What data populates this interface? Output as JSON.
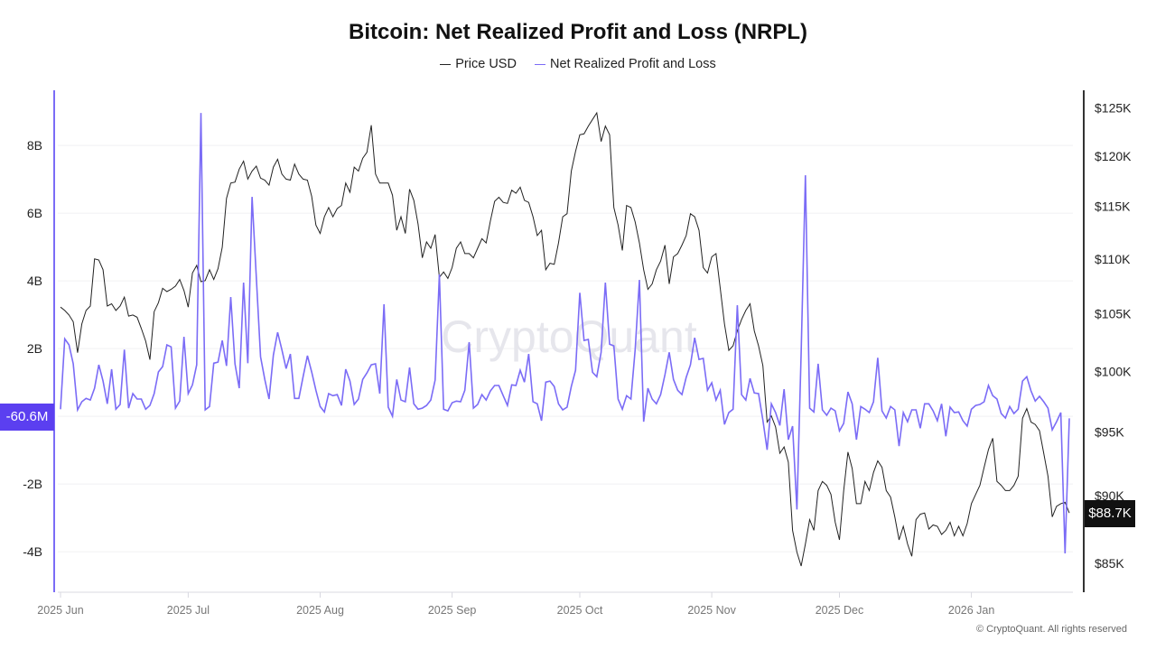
{
  "chart_data": {
    "type": "line",
    "title": "Bitcoin: Net Realized Profit and Loss (NRPL)",
    "legend": {
      "placement": "top-center",
      "entries": [
        "Price USD",
        "Net Realized Profit and Loss"
      ]
    },
    "watermark": "CryptoQuant",
    "copyright": "© CryptoQuant. All rights reserved",
    "grid": true,
    "x_axis": {
      "type": "date",
      "range": [
        "2025-06-01",
        "2026-01-24"
      ],
      "tick_labels": [
        "2025 Jun",
        "2025 Jul",
        "2025 Aug",
        "2025 Sep",
        "2025 Oct",
        "2025 Nov",
        "2025 Dec",
        "2026 Jan"
      ],
      "tick_dates": [
        "2025-06-01",
        "2025-07-01",
        "2025-08-01",
        "2025-09-01",
        "2025-10-01",
        "2025-11-01",
        "2025-12-01",
        "2026-01-01"
      ]
    },
    "y_left": {
      "unit": "B USD",
      "range": [
        -5.17,
        9.63
      ],
      "scale": "linear",
      "tick_labels": [
        "8B",
        "6B",
        "4B",
        "2B",
        "-2B",
        "-4B"
      ],
      "tick_values": [
        8,
        6,
        4,
        2,
        -2,
        -4
      ],
      "color": "#7b6cf6"
    },
    "y_right": {
      "unit": "K USD",
      "range": [
        83.0,
        126.9
      ],
      "scale": "log",
      "tick_labels": [
        "$125K",
        "$120K",
        "$115K",
        "$110K",
        "$105K",
        "$100K",
        "$95K",
        "$90K",
        "$85K"
      ],
      "tick_values": [
        125,
        120,
        115,
        110,
        105,
        100,
        95,
        90,
        85
      ],
      "color": "#222222"
    },
    "current_values": {
      "nrpl_label": "-60.6M",
      "price_label": "$88.7K"
    },
    "dates": [
      "2025-06-01",
      "2025-06-02",
      "2025-06-03",
      "2025-06-04",
      "2025-06-05",
      "2025-06-06",
      "2025-06-07",
      "2025-06-08",
      "2025-06-09",
      "2025-06-10",
      "2025-06-11",
      "2025-06-12",
      "2025-06-13",
      "2025-06-14",
      "2025-06-15",
      "2025-06-16",
      "2025-06-17",
      "2025-06-18",
      "2025-06-19",
      "2025-06-20",
      "2025-06-21",
      "2025-06-22",
      "2025-06-23",
      "2025-06-24",
      "2025-06-25",
      "2025-06-26",
      "2025-06-27",
      "2025-06-28",
      "2025-06-29",
      "2025-06-30",
      "2025-07-01",
      "2025-07-02",
      "2025-07-03",
      "2025-07-04",
      "2025-07-05",
      "2025-07-06",
      "2025-07-07",
      "2025-07-08",
      "2025-07-09",
      "2025-07-10",
      "2025-07-11",
      "2025-07-12",
      "2025-07-13",
      "2025-07-14",
      "2025-07-15",
      "2025-07-16",
      "2025-07-17",
      "2025-07-18",
      "2025-07-19",
      "2025-07-20",
      "2025-07-21",
      "2025-07-22",
      "2025-07-23",
      "2025-07-24",
      "2025-07-25",
      "2025-07-26",
      "2025-07-27",
      "2025-07-28",
      "2025-07-29",
      "2025-07-30",
      "2025-07-31",
      "2025-08-01",
      "2025-08-02",
      "2025-08-03",
      "2025-08-04",
      "2025-08-05",
      "2025-08-06",
      "2025-08-07",
      "2025-08-08",
      "2025-08-09",
      "2025-08-10",
      "2025-08-11",
      "2025-08-12",
      "2025-08-13",
      "2025-08-14",
      "2025-08-15",
      "2025-08-16",
      "2025-08-17",
      "2025-08-18",
      "2025-08-19",
      "2025-08-20",
      "2025-08-21",
      "2025-08-22",
      "2025-08-23",
      "2025-08-24",
      "2025-08-25",
      "2025-08-26",
      "2025-08-27",
      "2025-08-28",
      "2025-08-29",
      "2025-08-30",
      "2025-08-31",
      "2025-09-01",
      "2025-09-02",
      "2025-09-03",
      "2025-09-04",
      "2025-09-05",
      "2025-09-06",
      "2025-09-07",
      "2025-09-08",
      "2025-09-09",
      "2025-09-10",
      "2025-09-11",
      "2025-09-12",
      "2025-09-13",
      "2025-09-14",
      "2025-09-15",
      "2025-09-16",
      "2025-09-17",
      "2025-09-18",
      "2025-09-19",
      "2025-09-20",
      "2025-09-21",
      "2025-09-22",
      "2025-09-23",
      "2025-09-24",
      "2025-09-25",
      "2025-09-26",
      "2025-09-27",
      "2025-09-28",
      "2025-09-29",
      "2025-09-30",
      "2025-10-01",
      "2025-10-02",
      "2025-10-03",
      "2025-10-04",
      "2025-10-05",
      "2025-10-06",
      "2025-10-07",
      "2025-10-08",
      "2025-10-09",
      "2025-10-10",
      "2025-10-11",
      "2025-10-12",
      "2025-10-13",
      "2025-10-14",
      "2025-10-15",
      "2025-10-16",
      "2025-10-17",
      "2025-10-18",
      "2025-10-19",
      "2025-10-20",
      "2025-10-21",
      "2025-10-22",
      "2025-10-23",
      "2025-10-24",
      "2025-10-25",
      "2025-10-26",
      "2025-10-27",
      "2025-10-28",
      "2025-10-29",
      "2025-10-30",
      "2025-10-31",
      "2025-11-01",
      "2025-11-02",
      "2025-11-03",
      "2025-11-04",
      "2025-11-05",
      "2025-11-06",
      "2025-11-07",
      "2025-11-08",
      "2025-11-09",
      "2025-11-10",
      "2025-11-11",
      "2025-11-12",
      "2025-11-13",
      "2025-11-14",
      "2025-11-15",
      "2025-11-16",
      "2025-11-17",
      "2025-11-18",
      "2025-11-19",
      "2025-11-20",
      "2025-11-21",
      "2025-11-22",
      "2025-11-23",
      "2025-11-24",
      "2025-11-25",
      "2025-11-26",
      "2025-11-27",
      "2025-11-28",
      "2025-11-29",
      "2025-11-30",
      "2025-12-01",
      "2025-12-02",
      "2025-12-03",
      "2025-12-04",
      "2025-12-05",
      "2025-12-06",
      "2025-12-07",
      "2025-12-08",
      "2025-12-09",
      "2025-12-10",
      "2025-12-11",
      "2025-12-12",
      "2025-12-13",
      "2025-12-14",
      "2025-12-15",
      "2025-12-16",
      "2025-12-17",
      "2025-12-18",
      "2025-12-19",
      "2025-12-20",
      "2025-12-21",
      "2025-12-22",
      "2025-12-23",
      "2025-12-24",
      "2025-12-25",
      "2025-12-26",
      "2025-12-27",
      "2025-12-28",
      "2025-12-29",
      "2025-12-30",
      "2025-12-31",
      "2026-01-01",
      "2026-01-02",
      "2026-01-03",
      "2026-01-04",
      "2026-01-05",
      "2026-01-06",
      "2026-01-07",
      "2026-01-08",
      "2026-01-09",
      "2026-01-10",
      "2026-01-11",
      "2026-01-12",
      "2026-01-13",
      "2026-01-14",
      "2026-01-15",
      "2026-01-16",
      "2026-01-17",
      "2026-01-18",
      "2026-01-19",
      "2026-01-20",
      "2026-01-21",
      "2026-01-22",
      "2026-01-23",
      "2026-01-24"
    ],
    "series": [
      {
        "name": "Price USD",
        "axis": "right",
        "unit": "K USD",
        "color": "#222222",
        "values": [
          105.6,
          105.3,
          104.9,
          104.3,
          101.6,
          104.1,
          105.3,
          105.7,
          110.0,
          109.9,
          109.0,
          105.7,
          105.9,
          105.3,
          105.7,
          106.5,
          104.8,
          104.9,
          104.7,
          103.7,
          102.6,
          101.0,
          105.2,
          106.0,
          107.3,
          107.0,
          107.2,
          107.5,
          108.1,
          107.1,
          105.6,
          108.7,
          109.4,
          107.9,
          108.0,
          109.0,
          108.1,
          109.1,
          111.1,
          115.8,
          117.3,
          117.4,
          118.7,
          119.5,
          117.7,
          118.5,
          119.0,
          117.8,
          117.6,
          117.1,
          118.9,
          119.7,
          118.2,
          117.7,
          117.6,
          119.2,
          118.2,
          117.7,
          117.6,
          116.0,
          113.2,
          112.4,
          114.0,
          114.9,
          114.0,
          114.8,
          115.1,
          117.3,
          116.4,
          118.9,
          118.5,
          119.8,
          120.4,
          123.2,
          118.2,
          117.3,
          117.3,
          117.3,
          116.1,
          112.7,
          114.0,
          112.4,
          116.7,
          115.6,
          113.3,
          110.1,
          111.6,
          111.0,
          112.3,
          108.3,
          108.8,
          108.2,
          109.2,
          111.0,
          111.6,
          110.5,
          110.5,
          110.1,
          111.0,
          111.9,
          111.5,
          113.6,
          115.5,
          115.9,
          115.4,
          115.3,
          116.6,
          116.3,
          116.9,
          115.6,
          115.4,
          114.0,
          112.2,
          112.7,
          109.0,
          109.6,
          109.5,
          111.5,
          114.0,
          114.3,
          118.5,
          120.5,
          122.2,
          122.3,
          123.1,
          123.8,
          124.5,
          121.5,
          123.1,
          122.2,
          114.9,
          113.2,
          110.8,
          115.1,
          114.9,
          113.5,
          111.5,
          109.0,
          107.2,
          107.7,
          109.0,
          109.8,
          111.3,
          107.7,
          110.2,
          110.5,
          111.3,
          112.2,
          114.3,
          114.0,
          112.7,
          109.2,
          108.7,
          110.2,
          110.5,
          107.3,
          104.1,
          101.8,
          102.2,
          103.5,
          104.5,
          105.3,
          105.9,
          103.5,
          102.2,
          100.5,
          95.8,
          96.3,
          95.4,
          93.3,
          93.8,
          92.6,
          87.4,
          85.8,
          84.8,
          86.4,
          88.2,
          87.4,
          90.4,
          91.1,
          90.8,
          90.1,
          88.0,
          86.7,
          90.4,
          93.4,
          92.1,
          89.4,
          89.4,
          91.1,
          90.4,
          91.8,
          92.7,
          92.2,
          90.4,
          89.9,
          88.4,
          86.7,
          87.7,
          86.4,
          85.5,
          88.2,
          88.6,
          88.7,
          87.5,
          87.8,
          87.7,
          87.1,
          87.4,
          88.0,
          87.0,
          87.7,
          87.0,
          87.9,
          89.4,
          90.1,
          90.8,
          92.2,
          93.6,
          94.5,
          91.1,
          90.8,
          90.4,
          90.4,
          90.8,
          91.5,
          96.1,
          96.9,
          95.8,
          95.6,
          95.1,
          93.3,
          91.5,
          88.4,
          89.2,
          89.4,
          89.5,
          88.7
        ]
      },
      {
        "name": "Net Realized Profit and Loss",
        "axis": "left",
        "unit": "B USD",
        "color": "#7b6cf6",
        "values": [
          0.21,
          2.29,
          2.11,
          1.55,
          0.19,
          0.43,
          0.53,
          0.48,
          0.83,
          1.52,
          1.04,
          0.37,
          1.39,
          0.21,
          0.35,
          1.97,
          0.24,
          0.67,
          0.51,
          0.51,
          0.21,
          0.32,
          0.67,
          1.31,
          1.47,
          2.11,
          2.05,
          0.24,
          0.45,
          2.35,
          0.67,
          0.93,
          1.52,
          8.96,
          0.19,
          0.29,
          1.57,
          1.6,
          2.24,
          1.49,
          3.52,
          1.55,
          0.83,
          3.95,
          1.57,
          6.48,
          4.11,
          1.76,
          1.09,
          0.51,
          1.81,
          2.48,
          1.97,
          1.41,
          1.84,
          0.53,
          0.53,
          1.17,
          1.79,
          1.31,
          0.77,
          0.29,
          0.13,
          0.67,
          0.61,
          0.64,
          0.32,
          1.39,
          1.04,
          0.35,
          0.51,
          1.09,
          1.28,
          1.52,
          1.55,
          0.67,
          3.31,
          0.27,
          0.0,
          1.09,
          0.48,
          0.43,
          1.44,
          0.37,
          0.21,
          0.24,
          0.32,
          0.48,
          1.07,
          4.19,
          0.21,
          0.16,
          0.4,
          0.45,
          0.43,
          0.77,
          2.19,
          0.24,
          0.35,
          0.64,
          0.48,
          0.75,
          0.91,
          0.91,
          0.61,
          0.32,
          0.93,
          0.91,
          1.36,
          1.01,
          1.84,
          0.43,
          0.37,
          -0.13,
          1.01,
          1.04,
          0.88,
          0.37,
          0.19,
          0.27,
          0.88,
          1.36,
          3.65,
          2.24,
          2.27,
          1.3,
          1.17,
          1.89,
          3.95,
          2.13,
          2.08,
          0.51,
          0.21,
          0.61,
          0.51,
          1.97,
          4.03,
          -0.16,
          0.83,
          0.51,
          0.37,
          0.64,
          1.23,
          1.89,
          1.09,
          0.77,
          0.64,
          1.15,
          1.52,
          2.32,
          1.68,
          1.71,
          0.77,
          0.99,
          0.48,
          0.77,
          -0.24,
          0.11,
          0.21,
          3.28,
          0.64,
          0.48,
          1.12,
          0.69,
          0.67,
          -0.11,
          -0.99,
          0.37,
          0.11,
          -0.27,
          0.8,
          -0.69,
          -0.29,
          -2.75,
          1.89,
          7.12,
          0.24,
          0.13,
          1.55,
          0.19,
          0.03,
          0.24,
          0.16,
          -0.43,
          -0.21,
          0.72,
          0.37,
          -0.69,
          0.29,
          0.21,
          0.11,
          0.43,
          1.73,
          0.16,
          -0.05,
          0.29,
          0.19,
          -0.88,
          0.11,
          -0.16,
          0.19,
          0.19,
          -0.35,
          0.37,
          0.37,
          0.16,
          -0.13,
          0.37,
          -0.59,
          0.27,
          0.11,
          0.13,
          -0.13,
          -0.29,
          0.21,
          0.32,
          0.35,
          0.43,
          0.91,
          0.61,
          0.51,
          0.08,
          -0.05,
          0.29,
          0.08,
          0.21,
          1.04,
          1.17,
          0.75,
          0.45,
          0.59,
          0.43,
          0.24,
          -0.4,
          -0.16,
          0.11,
          -4.05,
          -0.0606
        ]
      }
    ]
  }
}
